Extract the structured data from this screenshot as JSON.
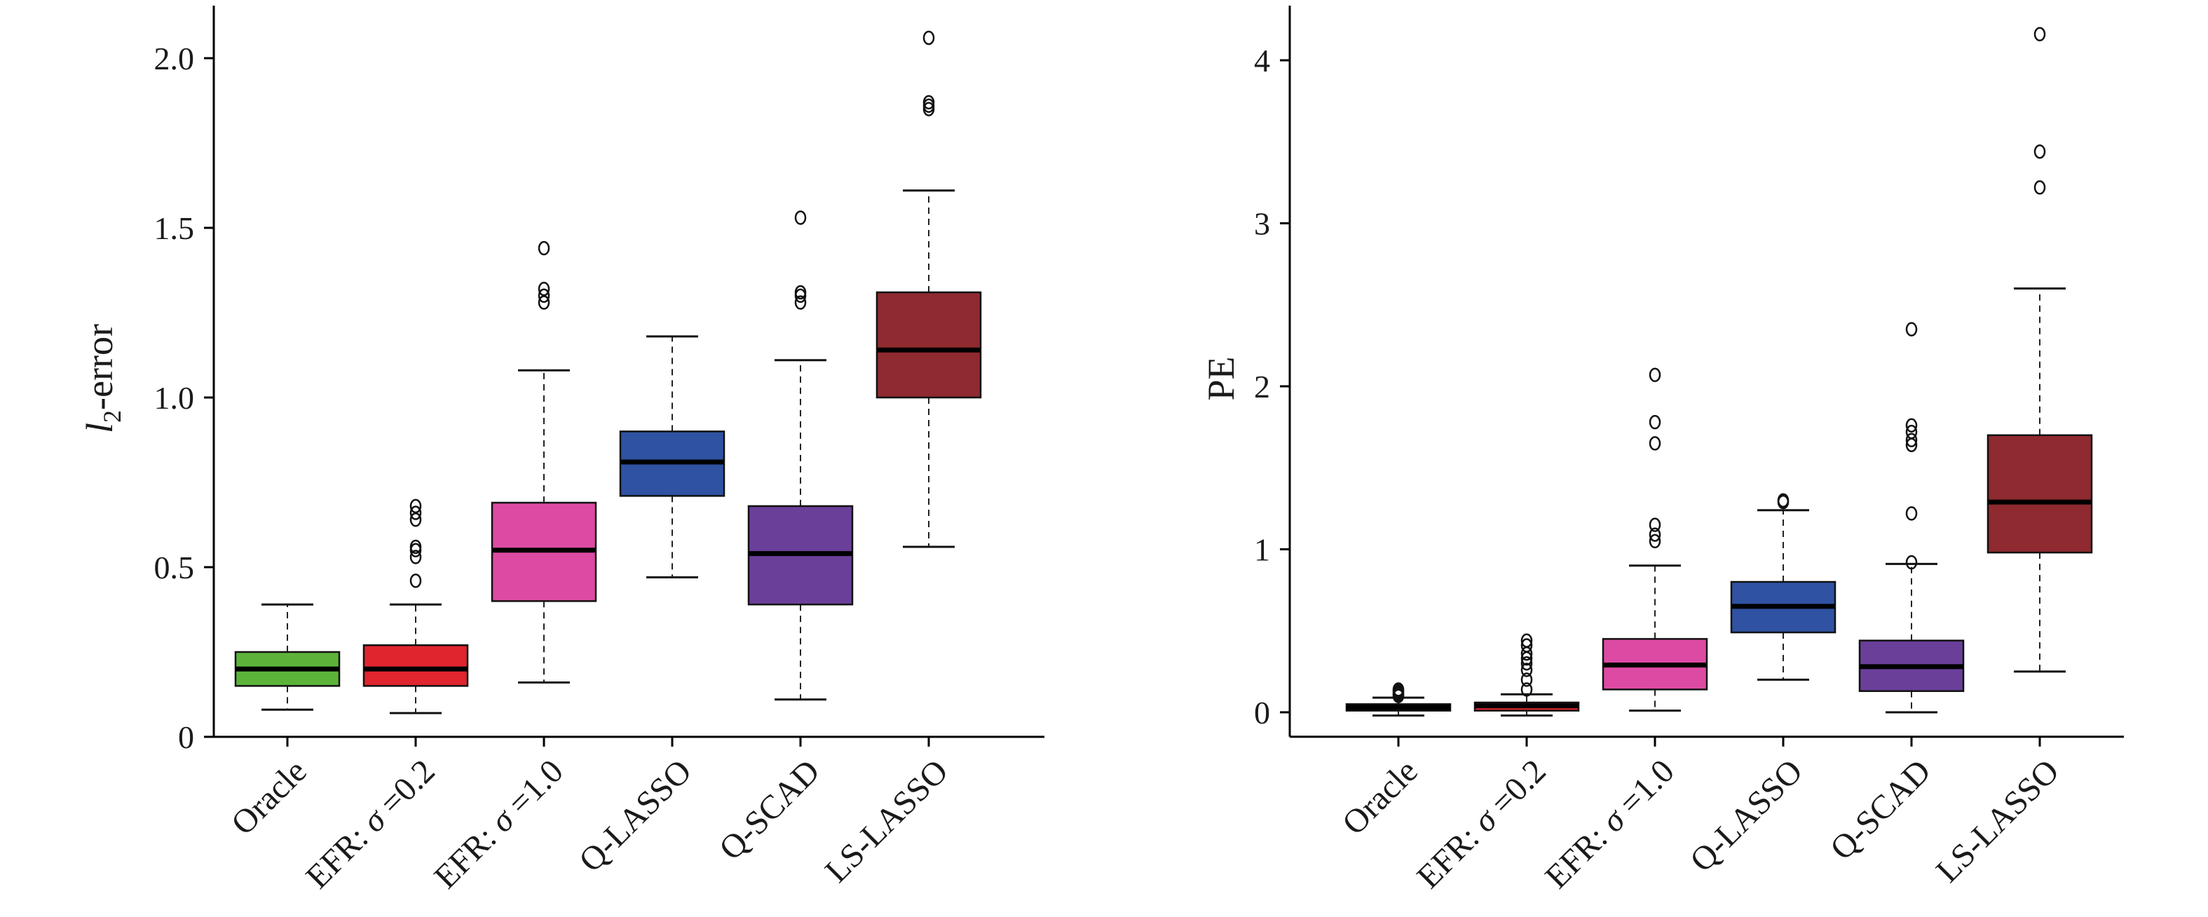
{
  "chart_data": [
    {
      "type": "boxplot",
      "ylabel": "l2-error",
      "ylabel_main": "l",
      "ylabel_sub": "2",
      "ylabel_rest": "-error",
      "ylim": [
        0,
        2.15
      ],
      "yticks": [
        0,
        0.5,
        1.0,
        1.5,
        2.0
      ],
      "ytick_labels": [
        "0",
        "0.5",
        "1.0",
        "1.5",
        "2.0"
      ],
      "categories": [
        "Oracle",
        "EFR: σ =0.2",
        "EFR: σ =1.0",
        "Q-LASSO",
        "Q-SCAD",
        "LS-LASSO"
      ],
      "boxes": [
        {
          "category": "Oracle",
          "color": "#5db33a",
          "whisker_low": 0.08,
          "q1": 0.15,
          "median": 0.2,
          "q3": 0.25,
          "whisker_high": 0.39,
          "outliers": []
        },
        {
          "category": "EFR: σ =0.2",
          "color": "#e0252e",
          "whisker_low": 0.07,
          "q1": 0.15,
          "median": 0.2,
          "q3": 0.27,
          "whisker_high": 0.39,
          "outliers": [
            0.46,
            0.53,
            0.55,
            0.56,
            0.64,
            0.66,
            0.68
          ]
        },
        {
          "category": "EFR: σ =1.0",
          "color": "#dd4aa3",
          "whisker_low": 0.16,
          "q1": 0.4,
          "median": 0.55,
          "q3": 0.69,
          "whisker_high": 1.08,
          "outliers": [
            1.28,
            1.3,
            1.32,
            1.44
          ]
        },
        {
          "category": "Q-LASSO",
          "color": "#2f52a3",
          "whisker_low": 0.47,
          "q1": 0.71,
          "median": 0.81,
          "q3": 0.9,
          "whisker_high": 1.18,
          "outliers": []
        },
        {
          "category": "Q-SCAD",
          "color": "#6a3f9a",
          "whisker_low": 0.11,
          "q1": 0.39,
          "median": 0.54,
          "q3": 0.68,
          "whisker_high": 1.11,
          "outliers": [
            1.28,
            1.3,
            1.31,
            1.53
          ]
        },
        {
          "category": "LS-LASSO",
          "color": "#8e2a30",
          "whisker_low": 0.56,
          "q1": 1.0,
          "median": 1.14,
          "q3": 1.31,
          "whisker_high": 1.61,
          "outliers": [
            1.85,
            1.86,
            1.87,
            2.06
          ]
        }
      ]
    },
    {
      "type": "boxplot",
      "ylabel": "PE",
      "ylim": [
        -0.15,
        4.3
      ],
      "yticks": [
        0,
        1,
        2,
        3,
        4
      ],
      "ytick_labels": [
        "0",
        "1",
        "2",
        "3",
        "4"
      ],
      "categories": [
        "Oracle",
        "EFR: σ =0.2",
        "EFR: σ =1.0",
        "Q-LASSO",
        "Q-SCAD",
        "LS-LASSO"
      ],
      "boxes": [
        {
          "category": "Oracle",
          "color": "#5db33a",
          "whisker_low": -0.02,
          "q1": 0.01,
          "median": 0.03,
          "q3": 0.05,
          "whisker_high": 0.09,
          "outliers": [
            0.1,
            0.11,
            0.12,
            0.13,
            0.14
          ]
        },
        {
          "category": "EFR: σ =0.2",
          "color": "#e0252e",
          "whisker_low": -0.02,
          "q1": 0.01,
          "median": 0.04,
          "q3": 0.06,
          "whisker_high": 0.11,
          "outliers": [
            0.14,
            0.2,
            0.26,
            0.3,
            0.33,
            0.36,
            0.41,
            0.44
          ]
        },
        {
          "category": "EFR: σ =1.0",
          "color": "#dd4aa3",
          "whisker_low": 0.01,
          "q1": 0.14,
          "median": 0.29,
          "q3": 0.45,
          "whisker_high": 0.9,
          "outliers": [
            1.05,
            1.09,
            1.15,
            1.65,
            1.78,
            2.07
          ]
        },
        {
          "category": "Q-LASSO",
          "color": "#2f52a3",
          "whisker_low": 0.2,
          "q1": 0.49,
          "median": 0.65,
          "q3": 0.8,
          "whisker_high": 1.24,
          "outliers": [
            1.29,
            1.3
          ]
        },
        {
          "category": "Q-SCAD",
          "color": "#6a3f9a",
          "whisker_low": 0.0,
          "q1": 0.13,
          "median": 0.28,
          "q3": 0.44,
          "whisker_high": 0.91,
          "outliers": [
            0.92,
            1.22,
            1.64,
            1.67,
            1.72,
            1.76,
            2.35
          ]
        },
        {
          "category": "LS-LASSO",
          "color": "#8e2a30",
          "whisker_low": 0.25,
          "q1": 0.98,
          "median": 1.29,
          "q3": 1.7,
          "whisker_high": 2.6,
          "outliers": [
            3.22,
            3.44,
            4.16
          ]
        }
      ]
    }
  ]
}
